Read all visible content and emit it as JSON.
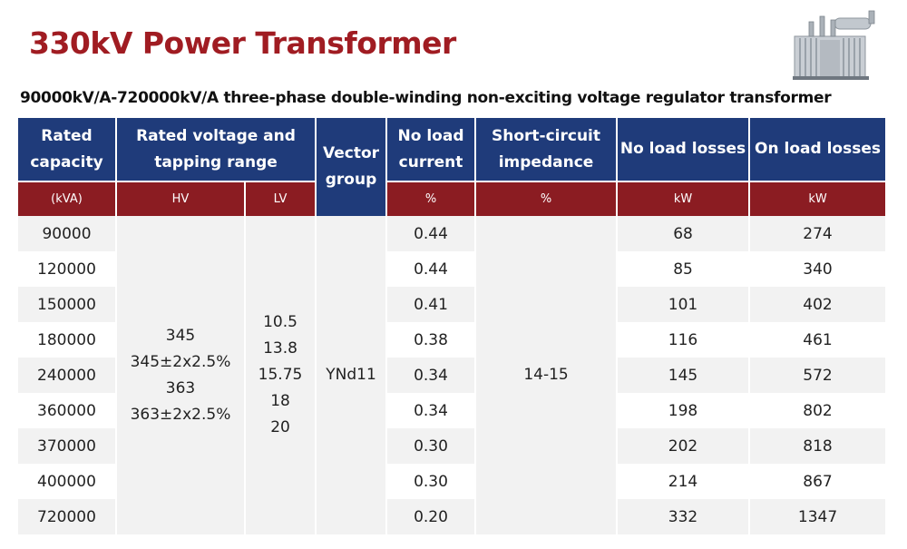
{
  "title": "330kV Power Transformer",
  "subtitle": "90000kV/A-720000kV/A three-phase double-winding non-exciting voltage regulator transformer",
  "colors": {
    "title": "#a01c22",
    "header_blue": "#1f3b7a",
    "unit_red": "#8b1c22",
    "row_gray": "#f2f2f2"
  },
  "image": {
    "icon": "transformer-photo"
  },
  "table": {
    "headers": {
      "rated_capacity": "Rated capacity",
      "rated_voltage": "Rated voltage and tapping range",
      "vector_group": "Vector group",
      "no_load_current": "No load current",
      "short_circuit": "Short-circuit impedance",
      "no_load_losses": "No load losses",
      "on_load_losses": "On load losses"
    },
    "units": {
      "capacity": "(kVA)",
      "hv": "HV",
      "lv": "LV",
      "no_load_current": "%",
      "short_circuit": "%",
      "no_load_losses": "kW",
      "on_load_losses": "kW"
    },
    "merged": {
      "hv": [
        "345",
        "345±2x2.5%",
        "363",
        "363±2x2.5%"
      ],
      "lv": [
        "10.5",
        "13.8",
        "15.75",
        "18",
        "20"
      ],
      "vector_group": "YNd11",
      "short_circuit": "14-15"
    },
    "rows": [
      {
        "capacity": "90000",
        "no_load_current": "0.44",
        "no_load_losses": "68",
        "on_load_losses": "274"
      },
      {
        "capacity": "120000",
        "no_load_current": "0.44",
        "no_load_losses": "85",
        "on_load_losses": "340"
      },
      {
        "capacity": "150000",
        "no_load_current": "0.41",
        "no_load_losses": "101",
        "on_load_losses": "402"
      },
      {
        "capacity": "180000",
        "no_load_current": "0.38",
        "no_load_losses": "116",
        "on_load_losses": "461"
      },
      {
        "capacity": "240000",
        "no_load_current": "0.34",
        "no_load_losses": "145",
        "on_load_losses": "572"
      },
      {
        "capacity": "360000",
        "no_load_current": "0.34",
        "no_load_losses": "198",
        "on_load_losses": "802"
      },
      {
        "capacity": "370000",
        "no_load_current": "0.30",
        "no_load_losses": "202",
        "on_load_losses": "818"
      },
      {
        "capacity": "400000",
        "no_load_current": "0.30",
        "no_load_losses": "214",
        "on_load_losses": "867"
      },
      {
        "capacity": "720000",
        "no_load_current": "0.20",
        "no_load_losses": "332",
        "on_load_losses": "1347"
      }
    ]
  }
}
